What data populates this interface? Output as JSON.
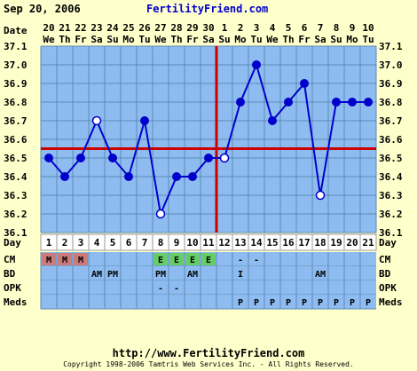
{
  "header": {
    "date": "Sep 20, 2006",
    "site": "FertilityFriend.com"
  },
  "footer": {
    "url": "http://www.FertilityFriend.com",
    "copyright": "Copyright 1998-2006 Tamtris Web Services Inc. - All Rights Reserved."
  },
  "colors": {
    "background": "#ffffcc",
    "plot_bg": "#8ebcf0",
    "grid": "#5a8ab8",
    "line": "#0000cc",
    "coverline": "#cc0000",
    "row_bg": "#8ebcf0",
    "menses": "#cc7a7a",
    "egg_white": "#66cc66"
  },
  "chart_data": {
    "type": "line",
    "date_row_label": "Date",
    "day_row_label": "Day",
    "dates": [
      "20",
      "21",
      "22",
      "23",
      "24",
      "25",
      "26",
      "27",
      "28",
      "29",
      "30",
      "1",
      "2",
      "3",
      "4",
      "5",
      "6",
      "7",
      "8",
      "9",
      "10"
    ],
    "weekdays": [
      "We",
      "Th",
      "Fr",
      "Sa",
      "Su",
      "Mo",
      "Tu",
      "We",
      "Th",
      "Fr",
      "Sa",
      "Su",
      "Mo",
      "Tu",
      "We",
      "Th",
      "Fr",
      "Sa",
      "Su",
      "Mo",
      "Tu"
    ],
    "cycle_days": [
      "1",
      "2",
      "3",
      "4",
      "5",
      "6",
      "7",
      "8",
      "9",
      "10",
      "11",
      "12",
      "13",
      "14",
      "15",
      "16",
      "17",
      "18",
      "19",
      "20",
      "21"
    ],
    "temps": [
      36.5,
      36.4,
      36.5,
      36.7,
      36.5,
      36.4,
      36.7,
      36.2,
      36.4,
      36.4,
      36.5,
      36.5,
      36.8,
      37.0,
      36.7,
      36.8,
      36.9,
      36.3,
      36.8,
      36.8,
      36.8
    ],
    "open_points": [
      3,
      7,
      11,
      17
    ],
    "ylim": [
      36.1,
      37.1
    ],
    "yticks": [
      "37.1",
      "37.0",
      "36.9",
      "36.8",
      "36.7",
      "36.6",
      "36.5",
      "36.4",
      "36.3",
      "36.2",
      "36.1"
    ],
    "coverline": 36.55,
    "ovulation_day": 12,
    "rows": [
      {
        "label": "CM",
        "cells": [
          "M",
          "M",
          "M",
          "",
          "",
          "",
          "",
          "E",
          "E",
          "E",
          "E",
          "",
          "-",
          "-",
          "",
          "",
          "",
          "",
          "",
          "",
          ""
        ]
      },
      {
        "label": "BD",
        "cells": [
          "",
          "",
          "",
          "AM",
          "PM",
          "",
          "",
          "PM",
          "",
          "AM",
          "",
          "",
          "I",
          "",
          "",
          "",
          "",
          "AM",
          "",
          "",
          ""
        ]
      },
      {
        "label": "OPK",
        "cells": [
          "",
          "",
          "",
          "",
          "",
          "",
          "",
          "-",
          "-",
          "",
          "",
          "",
          "",
          "",
          "",
          "",
          "",
          "",
          "",
          "",
          ""
        ]
      },
      {
        "label": "Meds",
        "cells": [
          "",
          "",
          "",
          "",
          "",
          "",
          "",
          "",
          "",
          "",
          "",
          "",
          "P",
          "P",
          "P",
          "P",
          "P",
          "P",
          "P",
          "P",
          "P"
        ]
      }
    ]
  }
}
